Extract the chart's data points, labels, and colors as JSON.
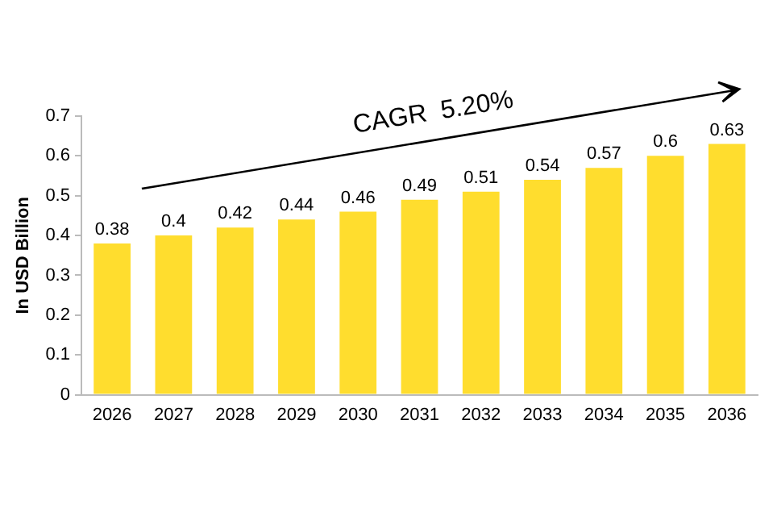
{
  "chart_data": {
    "type": "bar",
    "ylabel": "In USD Billion",
    "categories": [
      "2026",
      "2027",
      "2028",
      "2029",
      "2030",
      "2031",
      "2032",
      "2033",
      "2034",
      "2035",
      "2036"
    ],
    "values": [
      0.38,
      0.4,
      0.42,
      0.44,
      0.46,
      0.49,
      0.51,
      0.54,
      0.57,
      0.6,
      0.63
    ],
    "color": "#ffdd2e",
    "ylim": [
      0,
      0.7
    ],
    "yticks": [
      0,
      0.1,
      0.2,
      0.3,
      0.4,
      0.5,
      0.6,
      0.7
    ],
    "grid": false,
    "legend": false,
    "data_labels": true,
    "annotations": [
      "CAGR  5.20%"
    ]
  }
}
